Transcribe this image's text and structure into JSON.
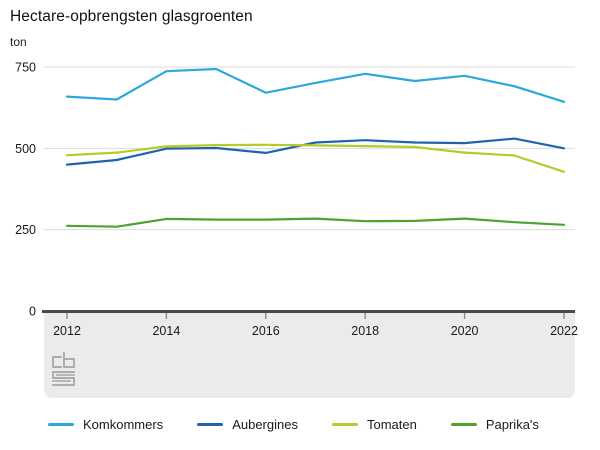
{
  "header": {
    "title": "Hectare-opbrengsten glasgroenten",
    "unit": "ton"
  },
  "chart_data": {
    "type": "line",
    "title": "Hectare-opbrengsten glasgroenten",
    "ylabel": "ton",
    "xlabel": "",
    "x": [
      2012,
      2013,
      2014,
      2015,
      2016,
      2017,
      2018,
      2019,
      2020,
      2021,
      2022
    ],
    "x_tick_labels": [
      "2012",
      "2014",
      "2016",
      "2018",
      "2020",
      "2022"
    ],
    "yticks": [
      0,
      250,
      500,
      750
    ],
    "ylim": [
      0,
      790
    ],
    "grid": true,
    "legend_position": "bottom",
    "series": [
      {
        "name": "Komkommers",
        "color": "#2CA8DC",
        "values": [
          659,
          650,
          737,
          744,
          671,
          701,
          729,
          707,
          723,
          691,
          643
        ]
      },
      {
        "name": "Aubergines",
        "color": "#2063AD",
        "values": [
          450,
          464,
          499,
          501,
          486,
          518,
          525,
          518,
          516,
          530,
          500
        ]
      },
      {
        "name": "Tomaten",
        "color": "#B5CC28",
        "values": [
          479,
          487,
          506,
          510,
          511,
          509,
          507,
          504,
          487,
          478,
          428
        ]
      },
      {
        "name": "Paprika's",
        "color": "#4CA32E",
        "values": [
          262,
          259,
          283,
          281,
          281,
          284,
          276,
          277,
          284,
          273,
          265
        ]
      }
    ],
    "colors": {
      "gridline": "#DBDBDB",
      "axis_line": "#4A4A4A",
      "axis_band": "#EBEBEB",
      "tick": "#8A8A8A",
      "label_text": "#1A1A1A",
      "logo": "#A3A3A3"
    }
  }
}
